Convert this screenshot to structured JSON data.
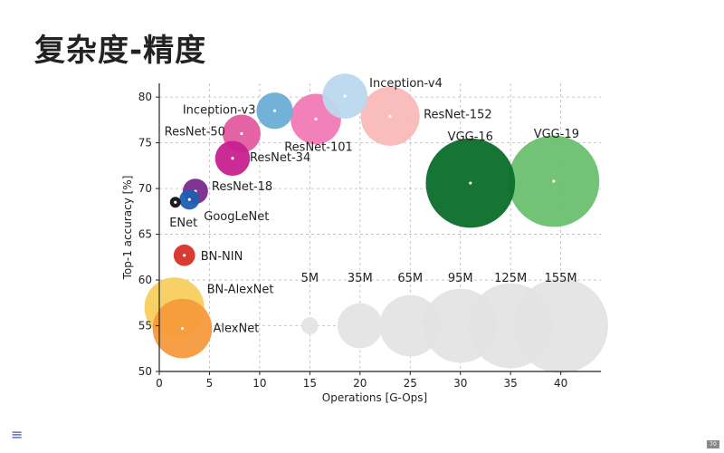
{
  "slide": {
    "title": "复杂度-精度",
    "page_number": "70",
    "menu_icon": "menu-icon"
  },
  "chart_data": {
    "type": "scatter",
    "title": "",
    "xlabel": "Operations [G-Ops]",
    "ylabel": "Top-1 accuracy [%]",
    "xlim": [
      0,
      44
    ],
    "ylim": [
      50,
      81.5
    ],
    "xticks": [
      0,
      5,
      10,
      15,
      20,
      25,
      30,
      35,
      40
    ],
    "yticks": [
      50,
      55,
      60,
      65,
      70,
      75,
      80
    ],
    "grid": true,
    "bubble_size_unit": "parameters",
    "points": [
      {
        "name": "AlexNet",
        "x": 2.3,
        "y": 54.7,
        "params_m": 61,
        "color": "#f59a3c"
      },
      {
        "name": "BN-AlexNet",
        "x": 1.5,
        "y": 57.0,
        "params_m": 62,
        "color": "#f8cf5e"
      },
      {
        "name": "BN-NIN",
        "x": 2.5,
        "y": 62.7,
        "params_m": 8,
        "color": "#d73027"
      },
      {
        "name": "ENet",
        "x": 1.6,
        "y": 68.5,
        "params_m": 0.4,
        "color": "#111111"
      },
      {
        "name": "GoogLeNet",
        "x": 3.0,
        "y": 68.8,
        "params_m": 7,
        "color": "#1f5fb0"
      },
      {
        "name": "ResNet-18",
        "x": 3.6,
        "y": 69.7,
        "params_m": 11,
        "color": "#7a2a8c"
      },
      {
        "name": "ResNet-34",
        "x": 7.3,
        "y": 73.3,
        "params_m": 21,
        "color": "#c7208f"
      },
      {
        "name": "ResNet-50",
        "x": 8.2,
        "y": 76.0,
        "params_m": 25,
        "color": "#e35aa1"
      },
      {
        "name": "Inception-v3",
        "x": 11.5,
        "y": 78.5,
        "params_m": 23,
        "color": "#6baed6"
      },
      {
        "name": "ResNet-101",
        "x": 15.6,
        "y": 77.6,
        "params_m": 44,
        "color": "#f07ab4"
      },
      {
        "name": "Inception-v4",
        "x": 18.5,
        "y": 80.1,
        "params_m": 35,
        "color": "#bcd7ee"
      },
      {
        "name": "ResNet-152",
        "x": 23.0,
        "y": 77.9,
        "params_m": 60,
        "color": "#f9b9b9"
      },
      {
        "name": "VGG-16",
        "x": 31.0,
        "y": 70.6,
        "params_m": 138,
        "color": "#0a6e2a"
      },
      {
        "name": "VGG-19",
        "x": 39.3,
        "y": 70.8,
        "params_m": 144,
        "color": "#6cc070"
      }
    ],
    "size_legend": [
      {
        "label": "5M",
        "x": 15,
        "params_m": 5
      },
      {
        "label": "35M",
        "x": 20,
        "params_m": 35
      },
      {
        "label": "65M",
        "x": 25,
        "params_m": 65
      },
      {
        "label": "95M",
        "x": 30,
        "params_m": 95
      },
      {
        "label": "125M",
        "x": 35,
        "params_m": 125
      },
      {
        "label": "155M",
        "x": 40,
        "params_m": 155
      }
    ],
    "size_legend_y": 55,
    "size_legend_color": "#e3e3e3"
  }
}
